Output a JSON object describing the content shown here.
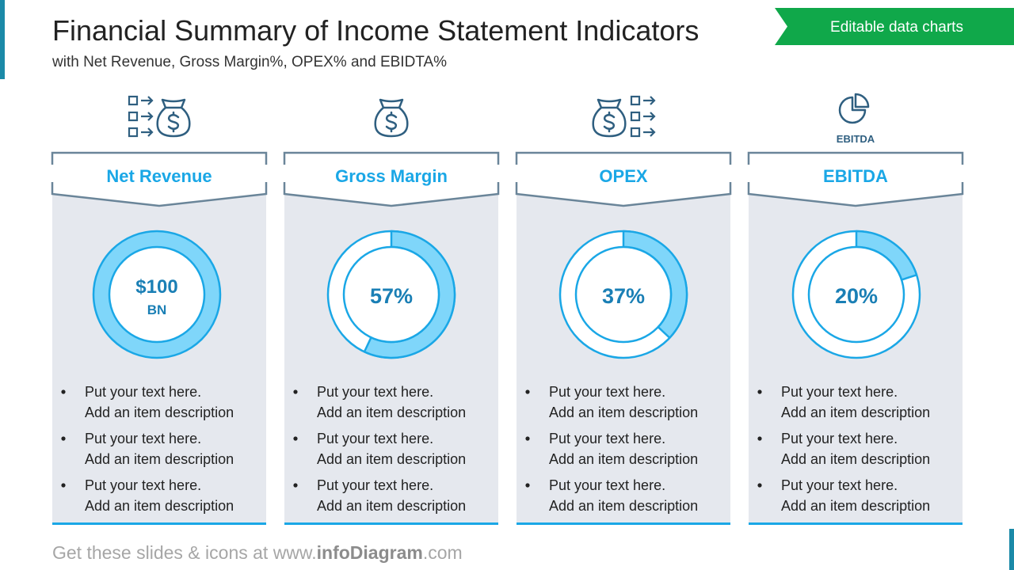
{
  "header": {
    "title": "Financial Summary of Income Statement Indicators",
    "subtitle": "with Net Revenue, Gross Margin%, OPEX% and EBIDTA%",
    "badge": "Editable data charts"
  },
  "cards": [
    {
      "title": "Net Revenue",
      "value_label": "$100",
      "unit": "BN",
      "items": [
        [
          "Put your text here.",
          "Add an item description"
        ],
        [
          "Put your text here.",
          "Add an item description"
        ],
        [
          "Put your text here.",
          "Add an item description"
        ]
      ]
    },
    {
      "title": "Gross Margin",
      "percent": 57,
      "percent_label": "57%",
      "items": [
        [
          "Put your text here.",
          "Add an item description"
        ],
        [
          "Put your text here.",
          "Add an item description"
        ],
        [
          "Put your text here.",
          "Add an item description"
        ]
      ]
    },
    {
      "title": "OPEX",
      "percent": 37,
      "percent_label": "37%",
      "items": [
        [
          "Put your text here.",
          "Add an item description"
        ],
        [
          "Put your text here.",
          "Add an item description"
        ],
        [
          "Put your text here.",
          "Add an item description"
        ]
      ]
    },
    {
      "title": "EBITDA",
      "percent": 20,
      "percent_label": "20%",
      "items": [
        [
          "Put your text here.",
          "Add an item description"
        ],
        [
          "Put your text here.",
          "Add an item description"
        ],
        [
          "Put your text here.",
          "Add an item description"
        ]
      ]
    }
  ],
  "icon_label": "EBITDA",
  "footer": {
    "prefix": "Get these slides & icons at www.",
    "brand": "infoDiagram",
    "suffix": ".com"
  }
}
